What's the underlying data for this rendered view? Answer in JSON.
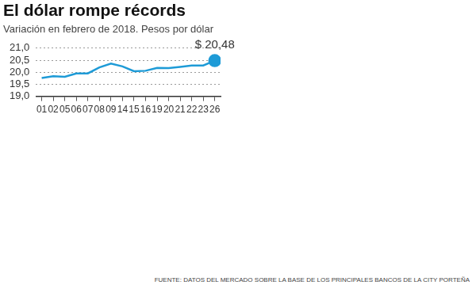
{
  "chart_data": {
    "type": "line",
    "title": "El dólar rompe récords",
    "subtitle": "Variación en febrero de 2018. Pesos por dólar",
    "source": "FUENTE: DATOS DEL MERCADO SOBRE LA BASE DE LOS PRINCIPALES BANCOS DE LA CITY PORTEÑA",
    "categories": [
      "01",
      "02",
      "05",
      "06",
      "07",
      "08",
      "09",
      "14",
      "15",
      "16",
      "19",
      "20",
      "21",
      "22",
      "23",
      "26"
    ],
    "values": [
      19.76,
      19.83,
      19.81,
      19.95,
      19.95,
      20.2,
      20.36,
      20.24,
      20.04,
      20.06,
      20.18,
      20.17,
      20.22,
      20.28,
      20.28,
      20.48
    ],
    "color": "#1e9bd7",
    "marker": "circle",
    "annotations": [
      {
        "text": "$ 20,48",
        "x": "26",
        "y": 20.48
      }
    ],
    "ylim": [
      19,
      21
    ],
    "yticks": [
      {
        "value": 19,
        "label": "19,0"
      },
      {
        "value": 19.5,
        "label": "19,5"
      },
      {
        "value": 20,
        "label": "20,0"
      },
      {
        "value": 20.5,
        "label": "20,5"
      },
      {
        "value": 21,
        "label": "21,0"
      }
    ],
    "grid": true
  }
}
